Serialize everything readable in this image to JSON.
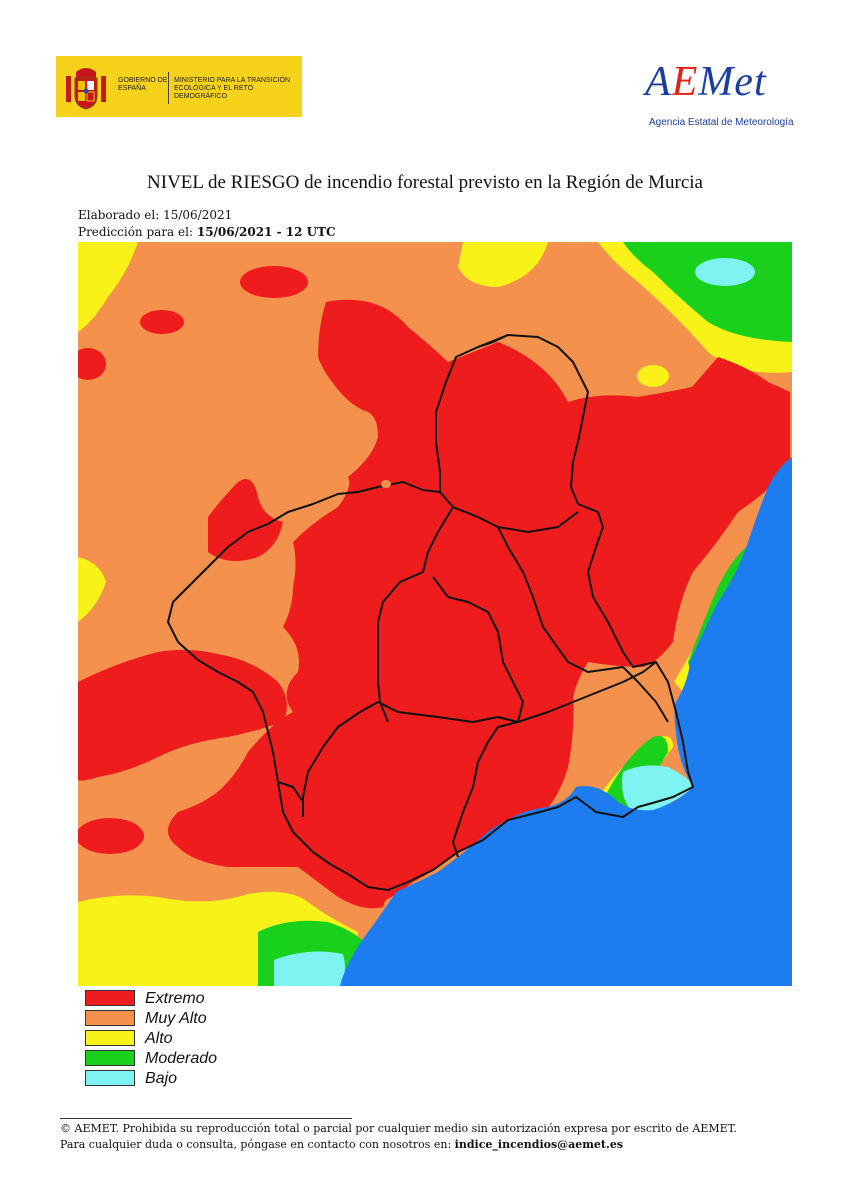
{
  "header": {
    "gov_line1": "GOBIERNO DE ESPAÑA",
    "gov_line2": "MINISTERIO PARA LA TRANSICIÓN ECOLÓGICA Y EL RETO DEMOGRÁFICO",
    "aemet_word_a": "A",
    "aemet_word_e": "E",
    "aemet_word_rest": "Met",
    "aemet_subtitle": "Agencia Estatal de Meteorología"
  },
  "title": "NIVEL de RIESGO de incendio forestal previsto en la Región de Murcia",
  "meta": {
    "elaborado_label": "Elaborado el:",
    "elaborado_date": "15/06/2021",
    "prediccion_label": "Predicción para el:",
    "prediccion_value": "15/06/2021 - 12 UTC"
  },
  "legend": [
    {
      "label": "Extremo",
      "color": "#ee1c1c"
    },
    {
      "label": "Muy Alto",
      "color": "#f4914c"
    },
    {
      "label": "Alto",
      "color": "#f8f219"
    },
    {
      "label": "Moderado",
      "color": "#19d11b"
    },
    {
      "label": "Bajo",
      "color": "#7ff2f2"
    }
  ],
  "colors": {
    "sea": "#1d7cf0",
    "border": "#111111"
  },
  "footer": {
    "line1": "© AEMET. Prohibida su reproducción total o parcial por cualquier medio sin autorización expresa por escrito de AEMET.",
    "line2_prefix": "Para cualquier duda o consulta, póngase en contacto con nosotros en:",
    "email": "indice_incendios@aemet.es"
  }
}
